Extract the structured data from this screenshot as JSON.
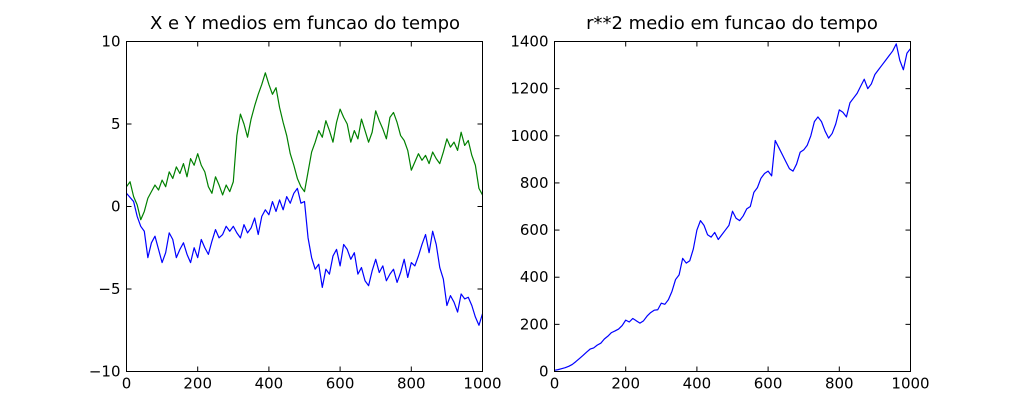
{
  "chart_data": [
    {
      "type": "line",
      "title": "X e Y medios em funcao do tempo",
      "xlabel": "",
      "ylabel": "",
      "xlim": [
        0,
        1000
      ],
      "ylim": [
        -10,
        10
      ],
      "xticks": [
        0,
        200,
        400,
        600,
        800,
        1000
      ],
      "xtick_labels": [
        "0",
        "200",
        "400",
        "600",
        "800",
        "1000"
      ],
      "yticks": [
        -10,
        -5,
        0,
        5,
        10
      ],
      "ytick_labels": [
        "−10",
        "−5",
        "0",
        "5",
        "10"
      ],
      "grid": false,
      "legend": "none",
      "series": [
        {
          "color": "#0000ff",
          "x": [
            0,
            20,
            30,
            40,
            50,
            60,
            70,
            80,
            90,
            100,
            110,
            120,
            130,
            140,
            150,
            160,
            170,
            180,
            190,
            200,
            210,
            220,
            230,
            240,
            250,
            260,
            270,
            280,
            290,
            300,
            310,
            320,
            330,
            340,
            350,
            360,
            370,
            380,
            390,
            400,
            410,
            420,
            430,
            440,
            450,
            460,
            470,
            480,
            490,
            500,
            510,
            520,
            530,
            540,
            550,
            560,
            570,
            580,
            590,
            600,
            610,
            620,
            630,
            640,
            650,
            660,
            670,
            680,
            690,
            700,
            710,
            720,
            730,
            740,
            750,
            760,
            770,
            780,
            790,
            800,
            810,
            820,
            830,
            840,
            850,
            860,
            870,
            880,
            890,
            900,
            910,
            920,
            930,
            940,
            950,
            960,
            970,
            980,
            990,
            1000
          ],
          "y": [
            0.8,
            0.3,
            -0.6,
            -1.2,
            -1.5,
            -3.1,
            -2.2,
            -1.8,
            -2.6,
            -3.4,
            -2.8,
            -1.6,
            -2.0,
            -3.1,
            -2.6,
            -2.2,
            -2.9,
            -3.4,
            -2.5,
            -3.1,
            -2.0,
            -2.5,
            -2.9,
            -2.1,
            -1.4,
            -1.9,
            -1.7,
            -1.2,
            -1.5,
            -1.2,
            -1.6,
            -1.9,
            -1.1,
            -1.6,
            -1.3,
            -0.7,
            -1.7,
            -0.6,
            -0.2,
            -0.5,
            0.3,
            -0.3,
            0.4,
            -0.2,
            0.6,
            0.2,
            0.8,
            1.1,
            0.2,
            0.3,
            -1.9,
            -3.1,
            -3.8,
            -3.5,
            -4.9,
            -3.8,
            -4.1,
            -3.0,
            -2.6,
            -3.6,
            -2.3,
            -2.6,
            -3.2,
            -2.8,
            -4.1,
            -3.7,
            -4.5,
            -4.8,
            -3.9,
            -3.2,
            -4.0,
            -3.6,
            -4.5,
            -4.1,
            -3.8,
            -4.6,
            -4.0,
            -3.2,
            -4.3,
            -3.4,
            -3.6,
            -3.0,
            -2.3,
            -1.7,
            -2.8,
            -1.5,
            -2.3,
            -3.7,
            -4.4,
            -6.0,
            -5.4,
            -5.8,
            -6.4,
            -5.3,
            -5.6,
            -5.5,
            -6.0,
            -6.7,
            -7.2,
            -6.5
          ]
        },
        {
          "color": "#008000",
          "x": [
            0,
            10,
            20,
            30,
            40,
            50,
            60,
            70,
            80,
            90,
            100,
            110,
            120,
            130,
            140,
            150,
            160,
            170,
            180,
            190,
            200,
            210,
            220,
            230,
            240,
            250,
            260,
            270,
            280,
            290,
            300,
            310,
            320,
            330,
            340,
            350,
            360,
            370,
            380,
            390,
            400,
            410,
            420,
            430,
            440,
            450,
            460,
            470,
            480,
            490,
            500,
            510,
            520,
            530,
            540,
            550,
            560,
            570,
            580,
            590,
            600,
            610,
            620,
            630,
            640,
            650,
            660,
            670,
            680,
            690,
            700,
            710,
            720,
            730,
            740,
            750,
            760,
            770,
            780,
            790,
            800,
            810,
            820,
            830,
            840,
            850,
            860,
            870,
            880,
            890,
            900,
            910,
            920,
            930,
            940,
            950,
            960,
            970,
            980,
            990,
            1000
          ],
          "y": [
            1.2,
            1.5,
            0.6,
            0.1,
            -0.8,
            -0.3,
            0.5,
            0.9,
            1.3,
            1.0,
            1.6,
            1.2,
            2.1,
            1.7,
            2.4,
            2.0,
            2.6,
            1.8,
            2.9,
            2.5,
            3.2,
            2.5,
            2.1,
            1.2,
            0.8,
            1.8,
            1.3,
            0.7,
            1.3,
            0.9,
            1.5,
            4.3,
            5.6,
            5.0,
            4.2,
            5.3,
            6.1,
            6.8,
            7.4,
            8.1,
            7.4,
            6.8,
            7.2,
            6.0,
            5.1,
            4.3,
            3.2,
            2.5,
            1.7,
            1.2,
            0.9,
            2.1,
            3.3,
            3.9,
            4.6,
            4.2,
            5.2,
            4.6,
            3.9,
            5.1,
            5.9,
            5.4,
            5.0,
            3.9,
            4.6,
            4.1,
            5.3,
            4.6,
            3.9,
            4.5,
            5.8,
            5.2,
            4.7,
            4.1,
            5.4,
            5.7,
            5.1,
            4.3,
            4.0,
            3.4,
            2.2,
            2.7,
            3.2,
            2.8,
            3.1,
            2.6,
            3.3,
            2.9,
            2.6,
            3.3,
            4.1,
            3.6,
            3.9,
            3.4,
            4.5,
            3.7,
            4.0,
            3.1,
            2.5,
            1.1,
            0.7
          ]
        }
      ]
    },
    {
      "type": "line",
      "title": "r**2 medio em funcao do tempo",
      "xlabel": "",
      "ylabel": "",
      "xlim": [
        0,
        1000
      ],
      "ylim": [
        0,
        1400
      ],
      "xticks": [
        0,
        200,
        400,
        600,
        800,
        1000
      ],
      "xtick_labels": [
        "0",
        "200",
        "400",
        "600",
        "800",
        "1000"
      ],
      "yticks": [
        0,
        200,
        400,
        600,
        800,
        1000,
        1200,
        1400
      ],
      "ytick_labels": [
        "0",
        "200",
        "400",
        "600",
        "800",
        "1000",
        "1200",
        "1400"
      ],
      "grid": false,
      "legend": "none",
      "series": [
        {
          "color": "#0000ff",
          "x": [
            0,
            10,
            20,
            30,
            40,
            50,
            60,
            70,
            80,
            90,
            100,
            110,
            120,
            130,
            140,
            150,
            160,
            170,
            180,
            190,
            200,
            210,
            220,
            230,
            240,
            250,
            260,
            270,
            280,
            290,
            300,
            310,
            320,
            330,
            340,
            350,
            360,
            370,
            380,
            390,
            400,
            410,
            420,
            430,
            440,
            450,
            460,
            470,
            480,
            490,
            500,
            510,
            520,
            530,
            540,
            550,
            560,
            570,
            580,
            590,
            600,
            610,
            620,
            630,
            640,
            650,
            660,
            670,
            680,
            690,
            700,
            710,
            720,
            730,
            740,
            750,
            760,
            770,
            780,
            790,
            800,
            810,
            820,
            830,
            840,
            850,
            860,
            870,
            880,
            890,
            900,
            910,
            920,
            930,
            940,
            950,
            960,
            970,
            980,
            990,
            1000
          ],
          "y": [
            5,
            8,
            12,
            16,
            22,
            30,
            42,
            55,
            68,
            82,
            95,
            100,
            112,
            120,
            138,
            150,
            165,
            172,
            180,
            195,
            218,
            210,
            225,
            215,
            205,
            215,
            235,
            250,
            260,
            262,
            290,
            285,
            305,
            340,
            390,
            410,
            480,
            460,
            470,
            520,
            600,
            640,
            620,
            580,
            570,
            590,
            560,
            580,
            600,
            620,
            680,
            650,
            640,
            660,
            690,
            700,
            760,
            780,
            820,
            840,
            850,
            830,
            980,
            950,
            920,
            890,
            860,
            850,
            880,
            930,
            940,
            960,
            1000,
            1060,
            1080,
            1060,
            1020,
            990,
            1010,
            1050,
            1110,
            1100,
            1080,
            1140,
            1160,
            1180,
            1210,
            1240,
            1200,
            1220,
            1260,
            1280,
            1300,
            1320,
            1340,
            1360,
            1390,
            1320,
            1280,
            1350,
            1370
          ]
        }
      ]
    }
  ]
}
